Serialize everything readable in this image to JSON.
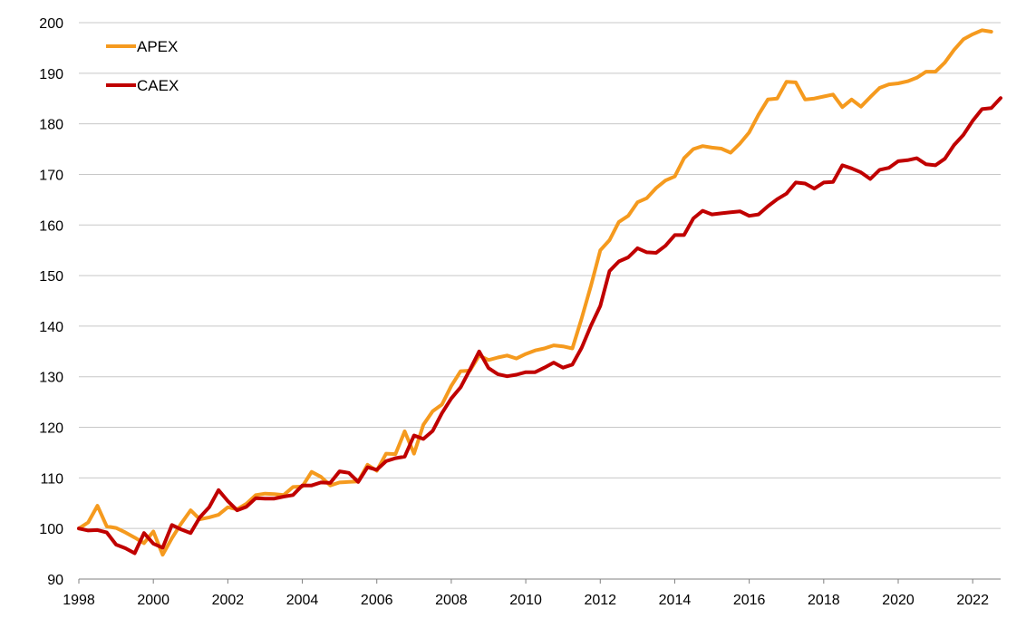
{
  "chart_data": {
    "type": "line",
    "title": "",
    "xlabel": "",
    "ylabel": "",
    "ylim": [
      90,
      200
    ],
    "xlim": [
      1998,
      2022.75
    ],
    "grid": true,
    "legend_position": "top-left",
    "y_ticks": [
      "90",
      "100",
      "110",
      "120",
      "130",
      "140",
      "150",
      "160",
      "170",
      "180",
      "190",
      "200"
    ],
    "x_ticks": [
      "1998",
      "2000",
      "2002",
      "2004",
      "2006",
      "2008",
      "2010",
      "2012",
      "2014",
      "2016",
      "2018",
      "2020",
      "2022"
    ],
    "x_step": 0.25,
    "series": [
      {
        "name": "APEX",
        "color": "#F59A1E",
        "values": [
          100.0,
          101.2,
          104.5,
          100.4,
          100.1,
          99.2,
          98.2,
          97.1,
          99.4,
          94.8,
          98.1,
          101.0,
          103.6,
          101.8,
          102.2,
          102.7,
          104.2,
          103.8,
          104.9,
          106.6,
          106.9,
          106.8,
          106.6,
          108.2,
          108.3,
          111.2,
          110.2,
          108.5,
          109.1,
          109.2,
          109.3,
          112.6,
          111.4,
          114.8,
          114.7,
          119.2,
          114.8,
          120.5,
          123.2,
          124.5,
          128.2,
          131.1,
          131.2,
          134.2,
          133.3,
          133.8,
          134.2,
          133.6,
          134.5,
          135.2,
          135.6,
          136.2,
          136.0,
          135.6,
          141.5,
          148.0,
          155.0,
          157.0,
          160.6,
          161.8,
          164.5,
          165.3,
          167.3,
          168.8,
          169.6,
          173.2,
          175.0,
          175.6,
          175.3,
          175.1,
          174.3,
          176.1,
          178.3,
          181.8,
          184.8,
          185.0,
          188.3,
          188.2,
          184.8,
          185.0,
          185.4,
          185.8,
          183.3,
          184.8,
          183.4,
          185.3,
          187.1,
          187.8,
          188.0,
          188.4,
          189.1,
          190.3,
          190.3,
          192.1,
          194.6,
          196.7,
          197.7,
          198.5,
          198.2
        ]
      },
      {
        "name": "CAEX",
        "color": "#C00000",
        "values": [
          100.0,
          99.6,
          99.7,
          99.2,
          96.8,
          96.1,
          95.1,
          99.1,
          97.0,
          96.2,
          100.7,
          99.8,
          99.1,
          102.2,
          104.2,
          107.6,
          105.4,
          103.6,
          104.3,
          106.0,
          105.9,
          105.9,
          106.3,
          106.6,
          108.5,
          108.5,
          109.1,
          109.0,
          111.3,
          111.0,
          109.2,
          112.1,
          111.6,
          113.3,
          113.9,
          114.2,
          118.4,
          117.7,
          119.3,
          122.8,
          125.7,
          127.9,
          131.4,
          135.0,
          131.7,
          130.5,
          130.1,
          130.4,
          130.9,
          130.9,
          131.8,
          132.8,
          131.8,
          132.4,
          135.7,
          140.1,
          144.0,
          150.9,
          152.8,
          153.6,
          155.4,
          154.6,
          154.5,
          155.9,
          158.0,
          158.0,
          161.3,
          162.8,
          162.1,
          162.3,
          162.5,
          162.7,
          161.8,
          162.1,
          163.7,
          165.1,
          166.2,
          168.4,
          168.2,
          167.2,
          168.4,
          168.5,
          171.8,
          171.2,
          170.4,
          169.1,
          170.9,
          171.3,
          172.6,
          172.8,
          173.2,
          172.0,
          171.8,
          173.1,
          175.8,
          177.8,
          180.6,
          182.9,
          183.1,
          185.1
        ]
      }
    ]
  }
}
